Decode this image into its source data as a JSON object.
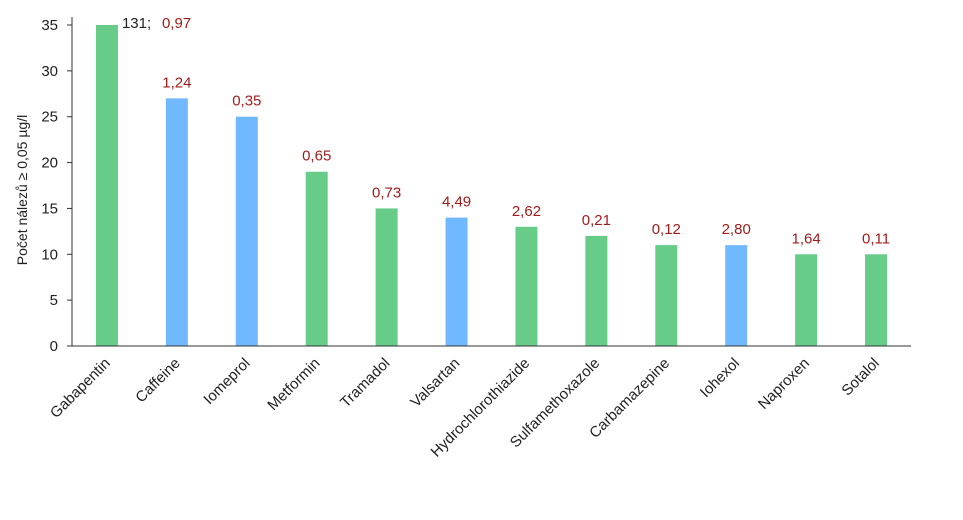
{
  "chart_data": {
    "type": "bar",
    "ylabel": "Počet nálezů ≥ 0,05 µg/l",
    "ylim": [
      0,
      35
    ],
    "yticks": [
      0,
      5,
      10,
      15,
      20,
      25,
      30,
      35
    ],
    "categories": [
      "Gabapentin",
      "Caffeine",
      "Iomeprol",
      "Metformin",
      "Tramadol",
      "Valsartan",
      "Hydrochlorothiazide",
      "Sulfamethoxazole",
      "Carbamazepine",
      "Iohexol",
      "Naproxen",
      "Sotalol"
    ],
    "values": [
      35,
      27,
      25,
      19,
      15,
      14,
      13,
      12,
      11,
      11,
      10,
      10
    ],
    "bar_colors": [
      "#66cc88",
      "#70b8ff",
      "#70b8ff",
      "#66cc88",
      "#66cc88",
      "#70b8ff",
      "#66cc88",
      "#66cc88",
      "#66cc88",
      "#70b8ff",
      "#66cc88",
      "#66cc88"
    ],
    "data_labels": [
      "0,97",
      "1,24",
      "0,35",
      "0,65",
      "0,73",
      "4,49",
      "2,62",
      "0,21",
      "0,12",
      "2,80",
      "1,64",
      "0,11"
    ],
    "count_labels": [
      "131;",
      "",
      "",
      "",
      "",
      "",
      "",
      "",
      "",
      "",
      "",
      ""
    ],
    "label_color": "#a01c1c",
    "grid": false,
    "legend": "none"
  }
}
